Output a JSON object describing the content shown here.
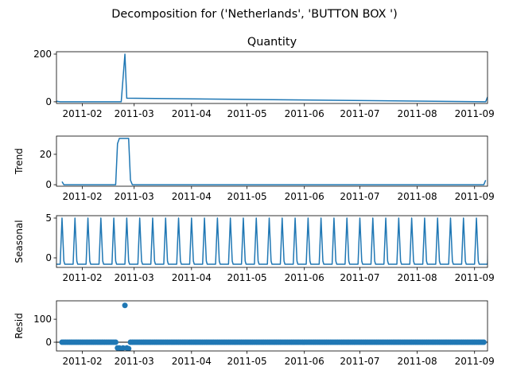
{
  "figure": {
    "suptitle": "Decomposition for ('Netherlands', 'BUTTON BOX ')",
    "line_color": "#1f77b4"
  },
  "chart_data": [
    {
      "type": "line",
      "title": "Quantity",
      "ylabel": "",
      "xlim": [
        "2011-01-18",
        "2011-09-08"
      ],
      "ylim": [
        -7,
        210
      ],
      "yticks": [
        0,
        200
      ],
      "xticks": [
        "2011-02",
        "2011-03",
        "2011-04",
        "2011-05",
        "2011-06",
        "2011-07",
        "2011-08",
        "2011-09"
      ],
      "series": [
        {
          "x": [
            "2011-01-18",
            "2011-01-20",
            "2011-02-22",
            "2011-02-23",
            "2011-02-24",
            "2011-02-25",
            "2011-09-07",
            "2011-09-08"
          ],
          "y": [
            2,
            0,
            0,
            100,
            200,
            15,
            0,
            20
          ]
        }
      ]
    },
    {
      "type": "line",
      "title": "",
      "ylabel": "Trend",
      "xlim": [
        "2011-01-18",
        "2011-09-08"
      ],
      "ylim": [
        -1,
        32
      ],
      "yticks": [
        0,
        20
      ],
      "xticks": [
        "2011-02",
        "2011-03",
        "2011-04",
        "2011-05",
        "2011-06",
        "2011-07",
        "2011-08",
        "2011-09"
      ],
      "series": [
        {
          "x": [
            "2011-01-21",
            "2011-01-22",
            "2011-02-19",
            "2011-02-20",
            "2011-02-21",
            "2011-02-26",
            "2011-02-27",
            "2011-02-28",
            "2011-09-06",
            "2011-09-07"
          ],
          "y": [
            2,
            0,
            0,
            27,
            30.5,
            30.5,
            3,
            0,
            0,
            3
          ]
        }
      ]
    },
    {
      "type": "line",
      "title": "",
      "ylabel": "Seasonal",
      "xlim": [
        "2011-01-18",
        "2011-09-08"
      ],
      "ylim": [
        -1.2,
        5.3
      ],
      "yticks": [
        0,
        5
      ],
      "xticks": [
        "2011-02",
        "2011-03",
        "2011-04",
        "2011-05",
        "2011-06",
        "2011-07",
        "2011-08",
        "2011-09"
      ],
      "period_days": 7,
      "first_peak": "2011-01-21",
      "peak_value": 5,
      "trough_value": -0.8
    },
    {
      "type": "scatter",
      "title": "",
      "ylabel": "Resid",
      "xlim": [
        "2011-01-18",
        "2011-09-08"
      ],
      "ylim": [
        -38,
        180
      ],
      "yticks": [
        0,
        100
      ],
      "xticks": [
        "2011-02",
        "2011-03",
        "2011-04",
        "2011-05",
        "2011-06",
        "2011-07",
        "2011-08",
        "2011-09"
      ],
      "baseline": 0,
      "series": [
        {
          "x_range": [
            "2011-01-21",
            "2011-09-06"
          ],
          "typical_y": 0,
          "outliers": [
            {
              "x": "2011-02-20",
              "y": -25
            },
            {
              "x": "2011-02-21",
              "y": -25
            },
            {
              "x": "2011-02-22",
              "y": -28
            },
            {
              "x": "2011-02-23",
              "y": -25
            },
            {
              "x": "2011-02-24",
              "y": 160
            },
            {
              "x": "2011-02-25",
              "y": -25
            },
            {
              "x": "2011-02-26",
              "y": -28
            }
          ]
        }
      ]
    }
  ]
}
